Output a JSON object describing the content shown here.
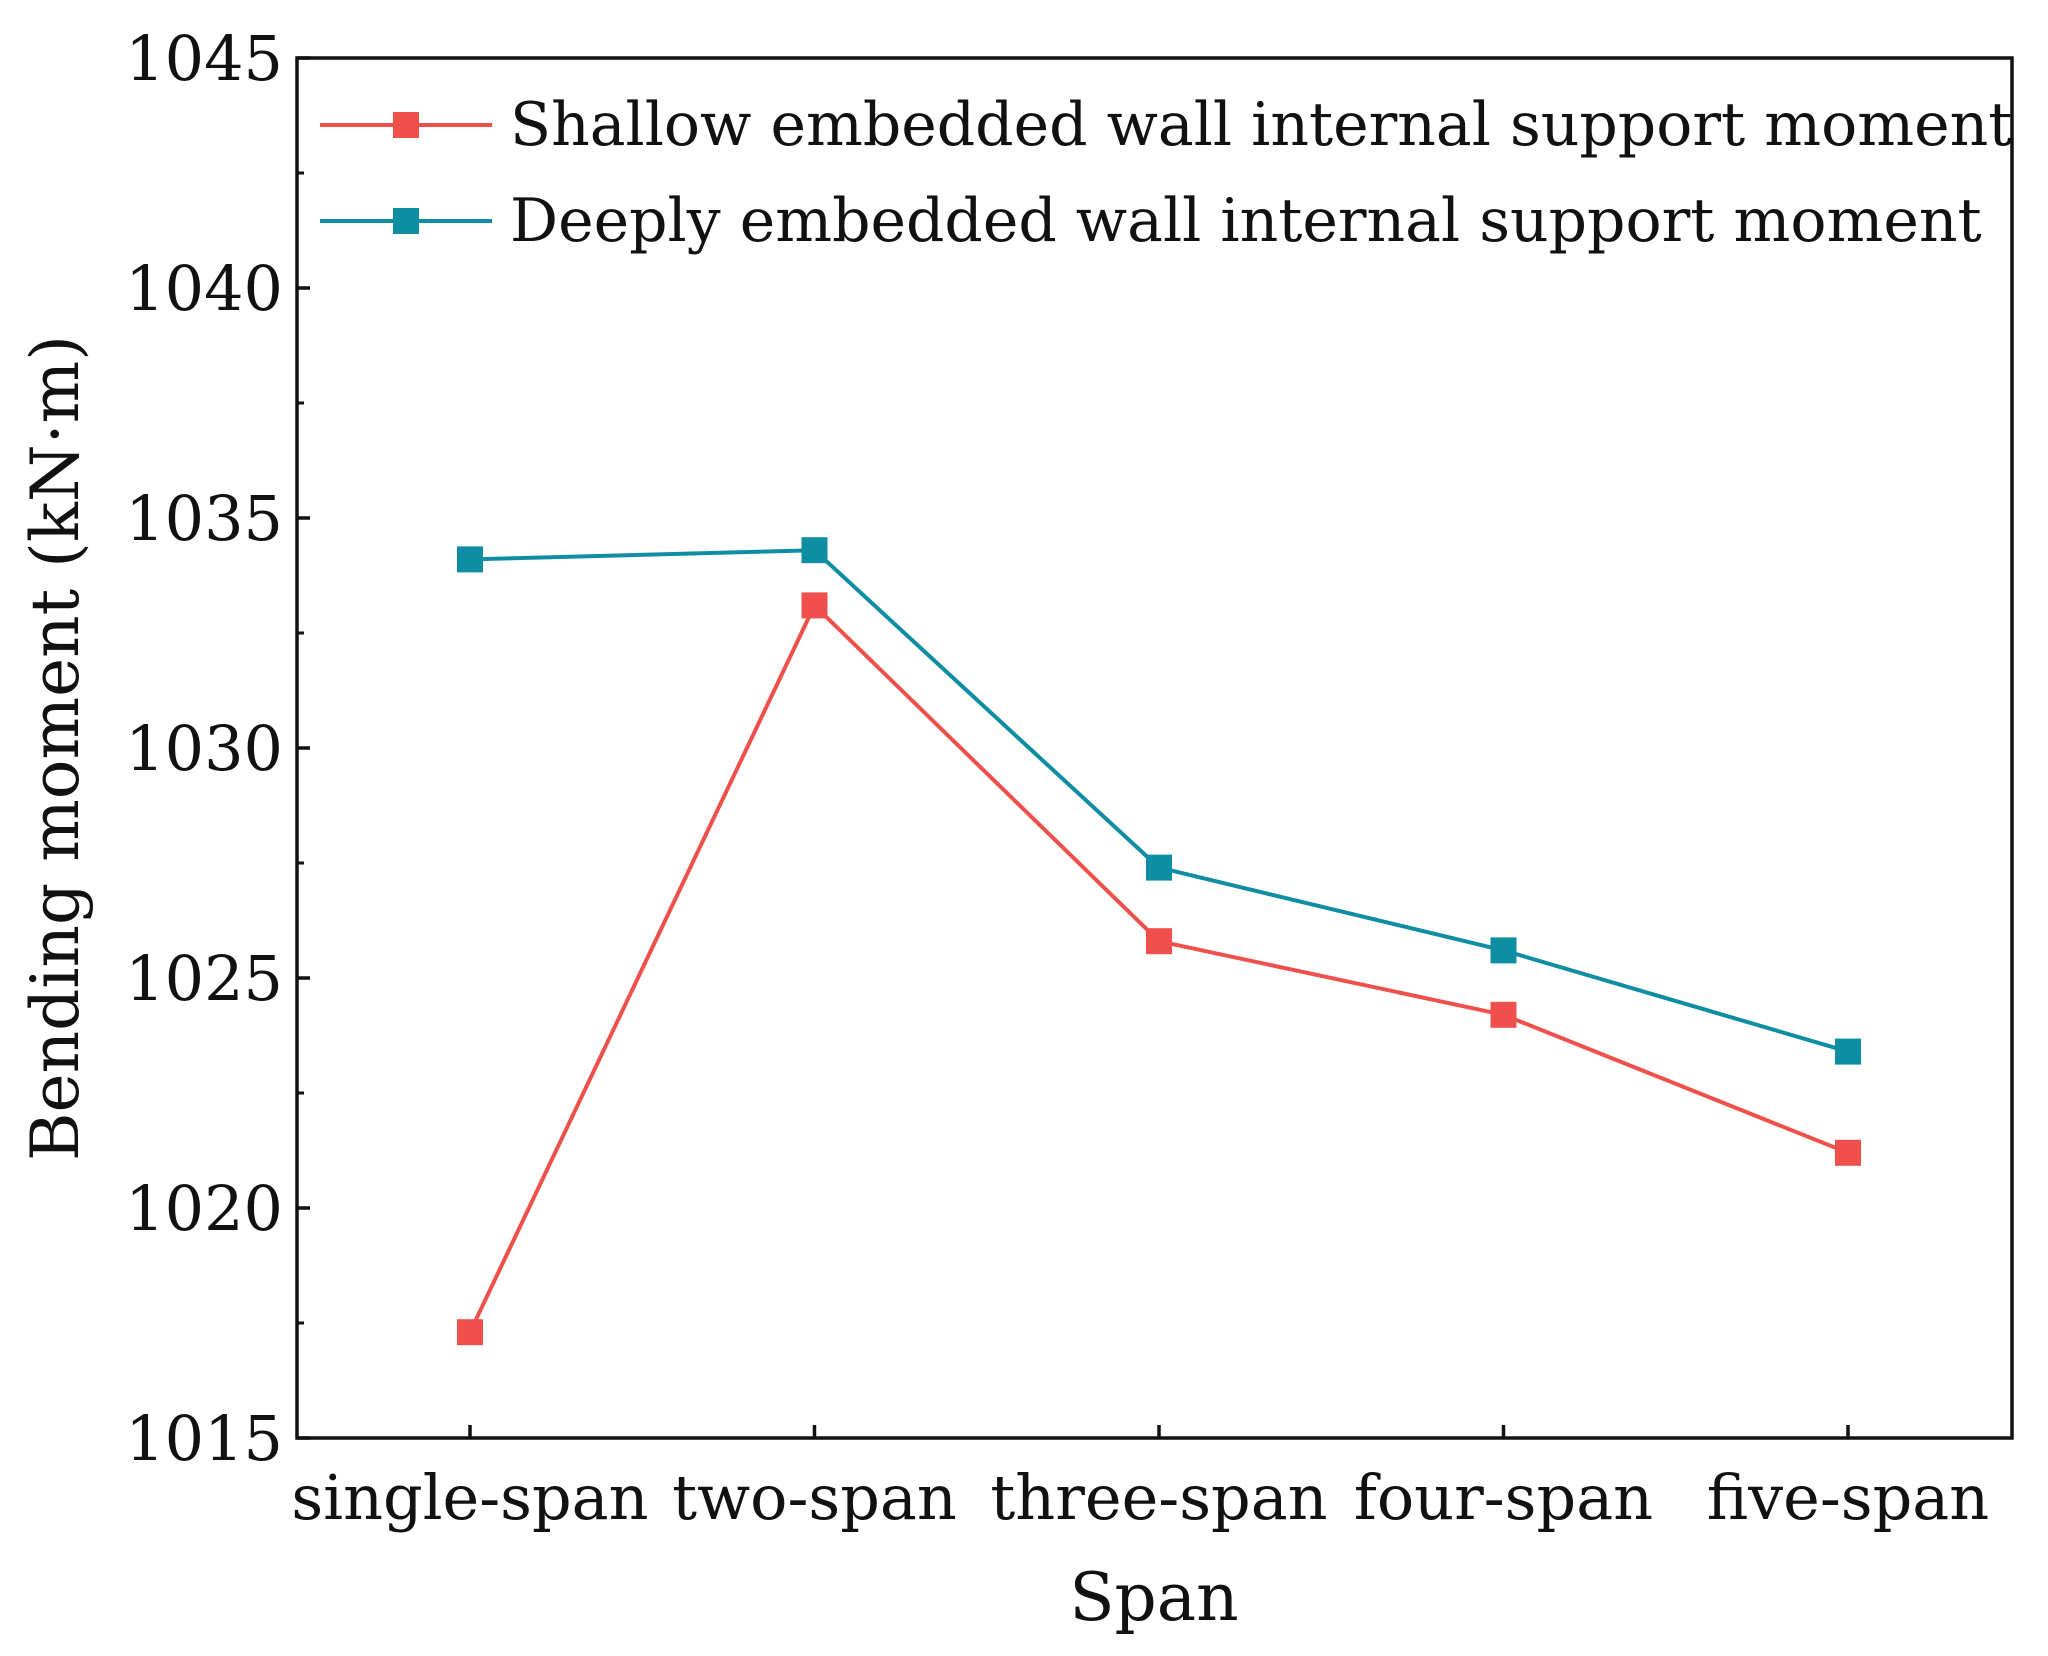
{
  "chart_data": {
    "type": "line",
    "title": "",
    "xlabel": "Span",
    "ylabel": "Bending moment (kN·m)",
    "categories": [
      "single-span",
      "two-span",
      "three-span",
      "four-span",
      "five-span"
    ],
    "ylim": [
      1015,
      1045
    ],
    "yticks": [
      {
        "value": 1015,
        "label": "1015"
      },
      {
        "value": 1020,
        "label": "1020"
      },
      {
        "value": 1025,
        "label": "1025"
      },
      {
        "value": 1030,
        "label": "1030"
      },
      {
        "value": 1035,
        "label": "1035"
      },
      {
        "value": 1040,
        "label": "1040"
      },
      {
        "value": 1045,
        "label": "1045"
      }
    ],
    "y_minor_step": 2.5,
    "grid": false,
    "legend_position": "top-left",
    "series": [
      {
        "name": "Shallow embedded wall internal support moment",
        "color": "#f0504b",
        "marker": "square",
        "values": [
          1017.3,
          1033.1,
          1025.8,
          1024.2,
          1021.2
        ]
      },
      {
        "name": "Deeply embedded wall internal support moment",
        "color": "#0e8da3",
        "marker": "square",
        "values": [
          1034.1,
          1034.3,
          1027.4,
          1025.6,
          1023.4
        ]
      }
    ]
  }
}
